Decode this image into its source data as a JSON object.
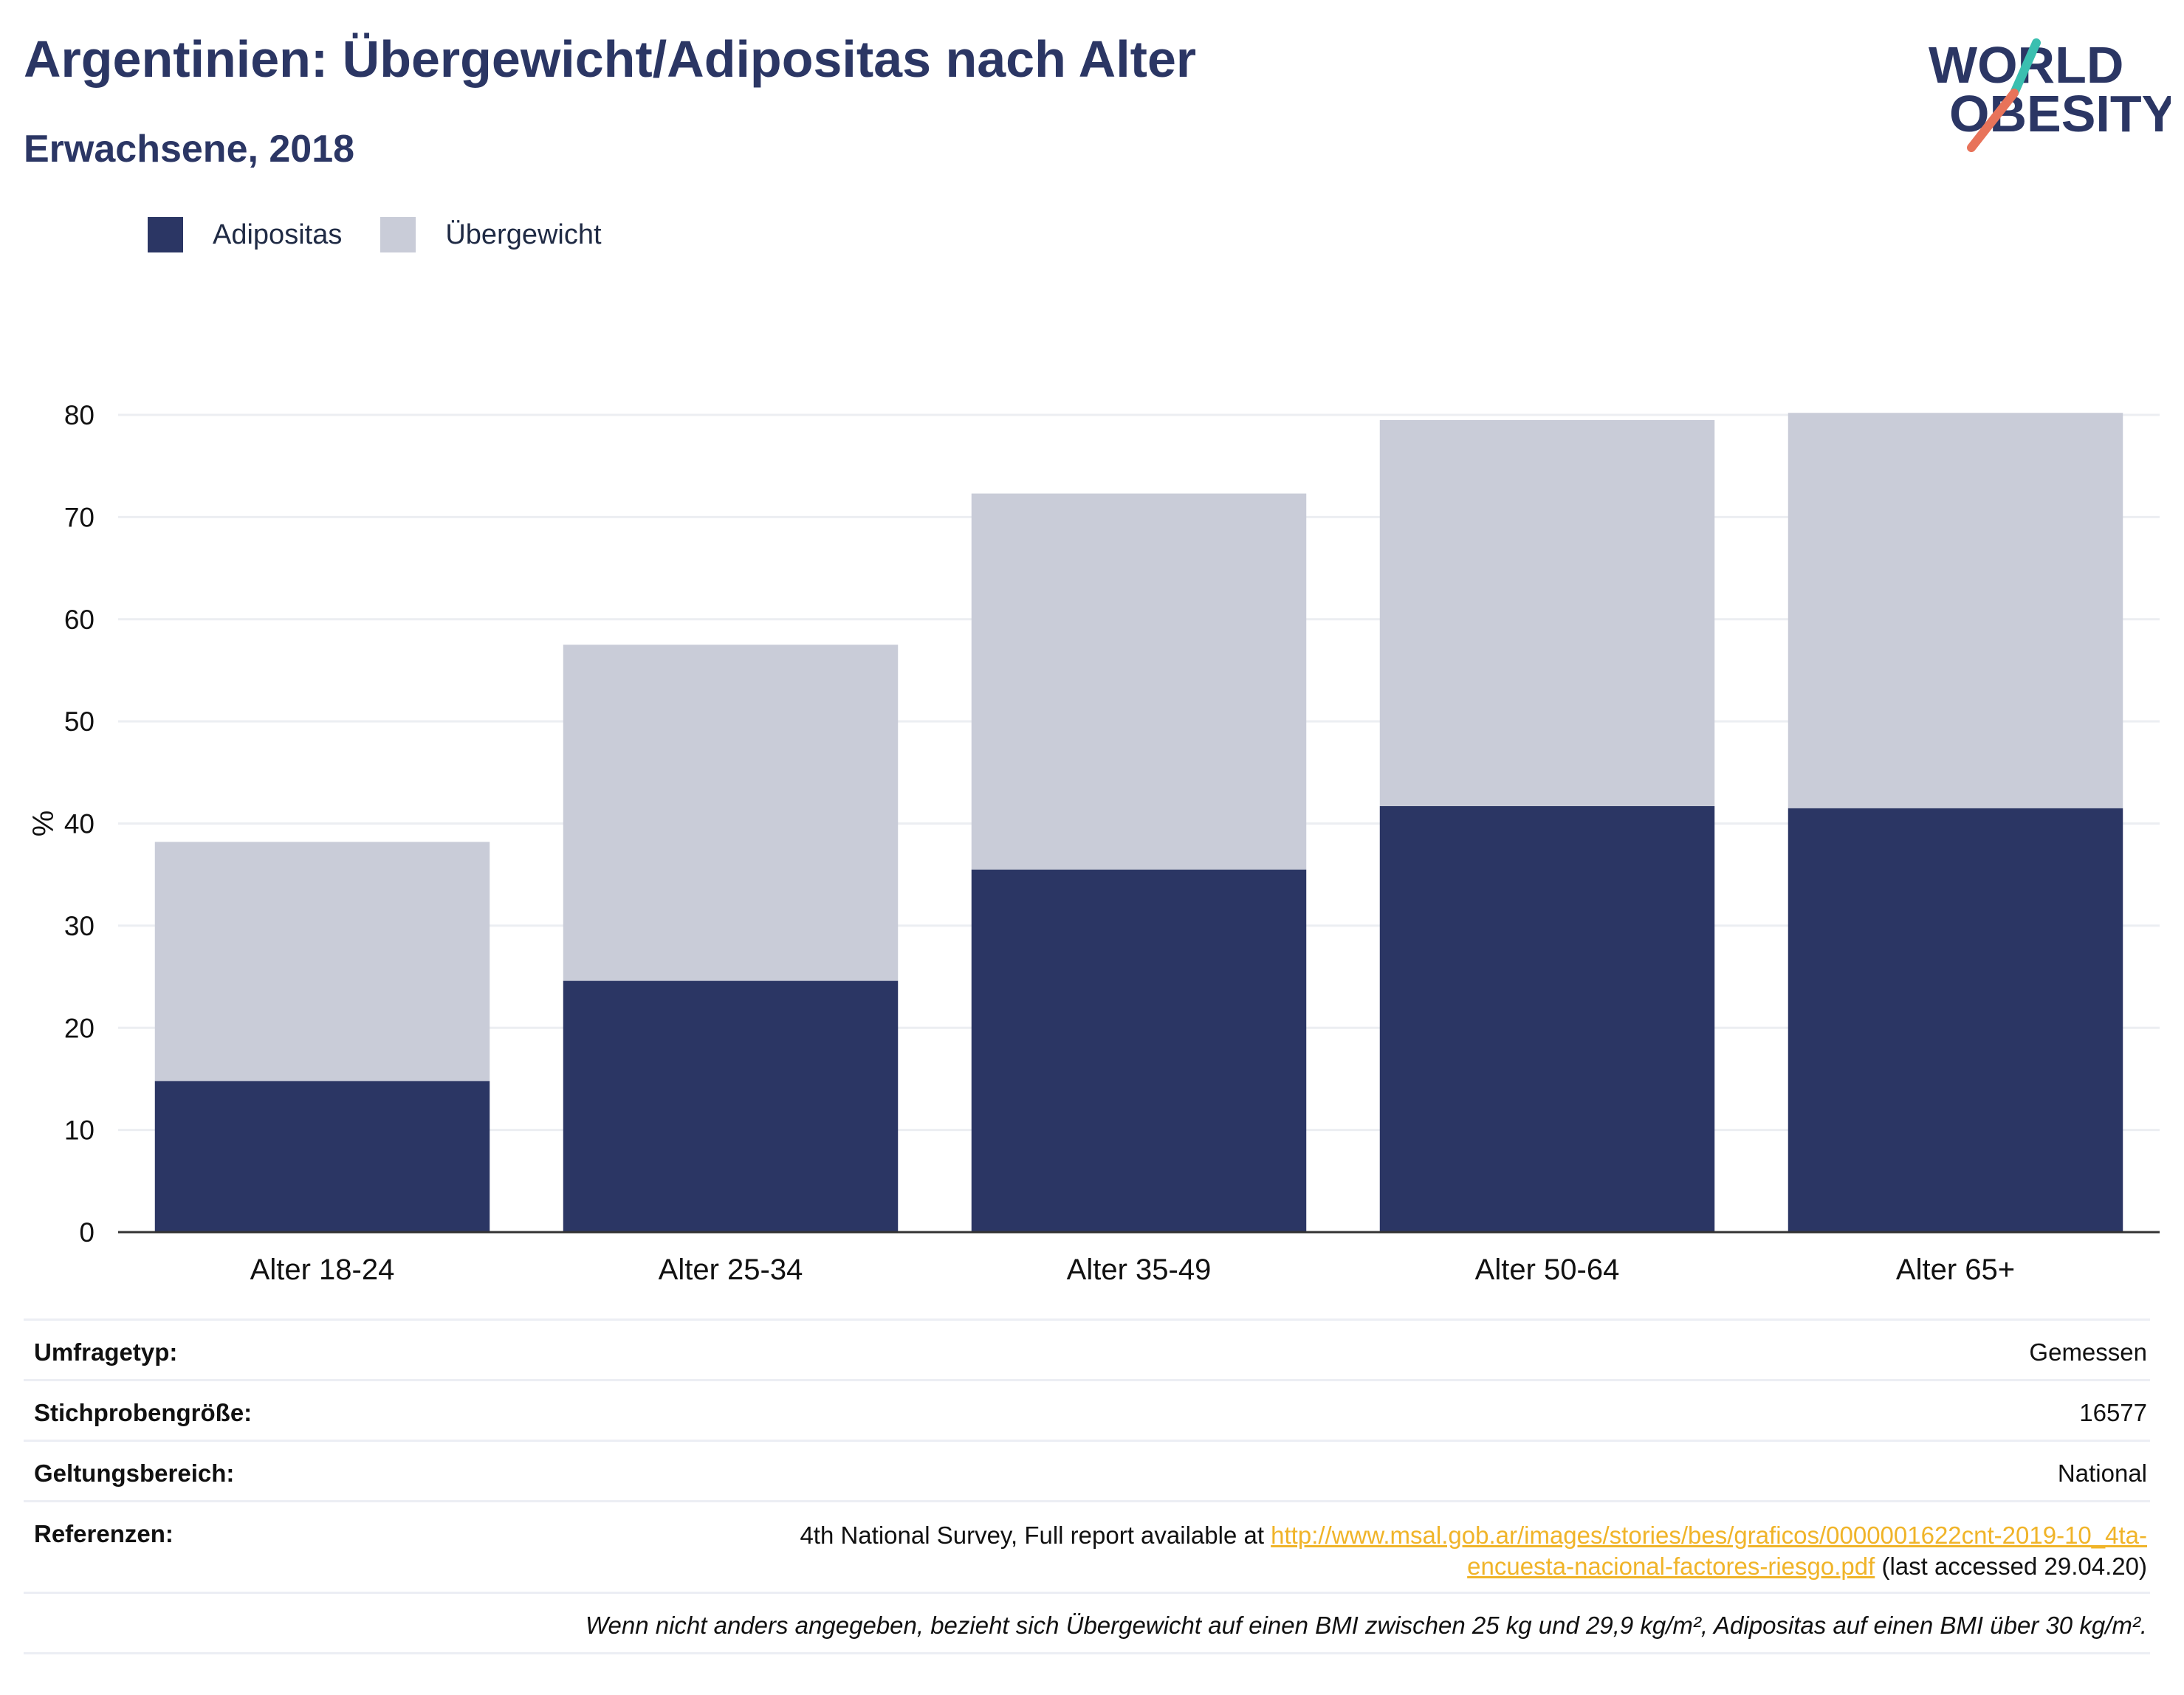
{
  "header": {
    "title": "Argentinien: Übergewicht/Adipositas nach Alter",
    "subtitle": "Erwachsene, 2018"
  },
  "logo": {
    "line1": "WORLD",
    "line2": "OBESITY"
  },
  "legend": {
    "items": [
      {
        "label": "Adipositas",
        "color": "#2b3664"
      },
      {
        "label": "Übergewicht",
        "color": "#c9ccd8"
      }
    ]
  },
  "chart_data": {
    "type": "bar",
    "stacked": true,
    "categories": [
      "Alter 18-24",
      "Alter 25-34",
      "Alter 35-49",
      "Alter 50-64",
      "Alter 65+"
    ],
    "series": [
      {
        "name": "Adipositas",
        "color": "#2b3664",
        "values": [
          14.8,
          24.6,
          35.5,
          41.7,
          41.5
        ]
      },
      {
        "name": "Übergewicht",
        "color": "#c9ccd8",
        "values": [
          23.4,
          32.9,
          36.8,
          37.8,
          38.7
        ]
      }
    ],
    "ylabel": "%",
    "ylim": [
      0,
      80
    ],
    "yticks": [
      0,
      10,
      20,
      30,
      40,
      50,
      60,
      70,
      80
    ],
    "grid": true,
    "legend_position": "top-left"
  },
  "info": {
    "survey_type": {
      "label": "Umfragetyp:",
      "value": "Gemessen"
    },
    "sample_size": {
      "label": "Stichprobengröße:",
      "value": "16577"
    },
    "scope": {
      "label": "Geltungsbereich:",
      "value": "National"
    },
    "references": {
      "label": "Referenzen:",
      "prefix": "4th National Survey, Full report available at ",
      "link_line1": "http://www.msal.gob.ar/images/stories/bes/graficos/0000001622cnt-2019-10_4ta-",
      "link_line2": "encuesta-nacional-factores-riesgo.pdf",
      "suffix": " (last accessed 29.04.20)"
    },
    "footnote": "Wenn nicht anders angegeben, bezieht sich Übergewicht auf einen BMI zwischen 25 kg und 29,9 kg/m², Adipositas auf einen BMI über 30 kg/m²."
  }
}
